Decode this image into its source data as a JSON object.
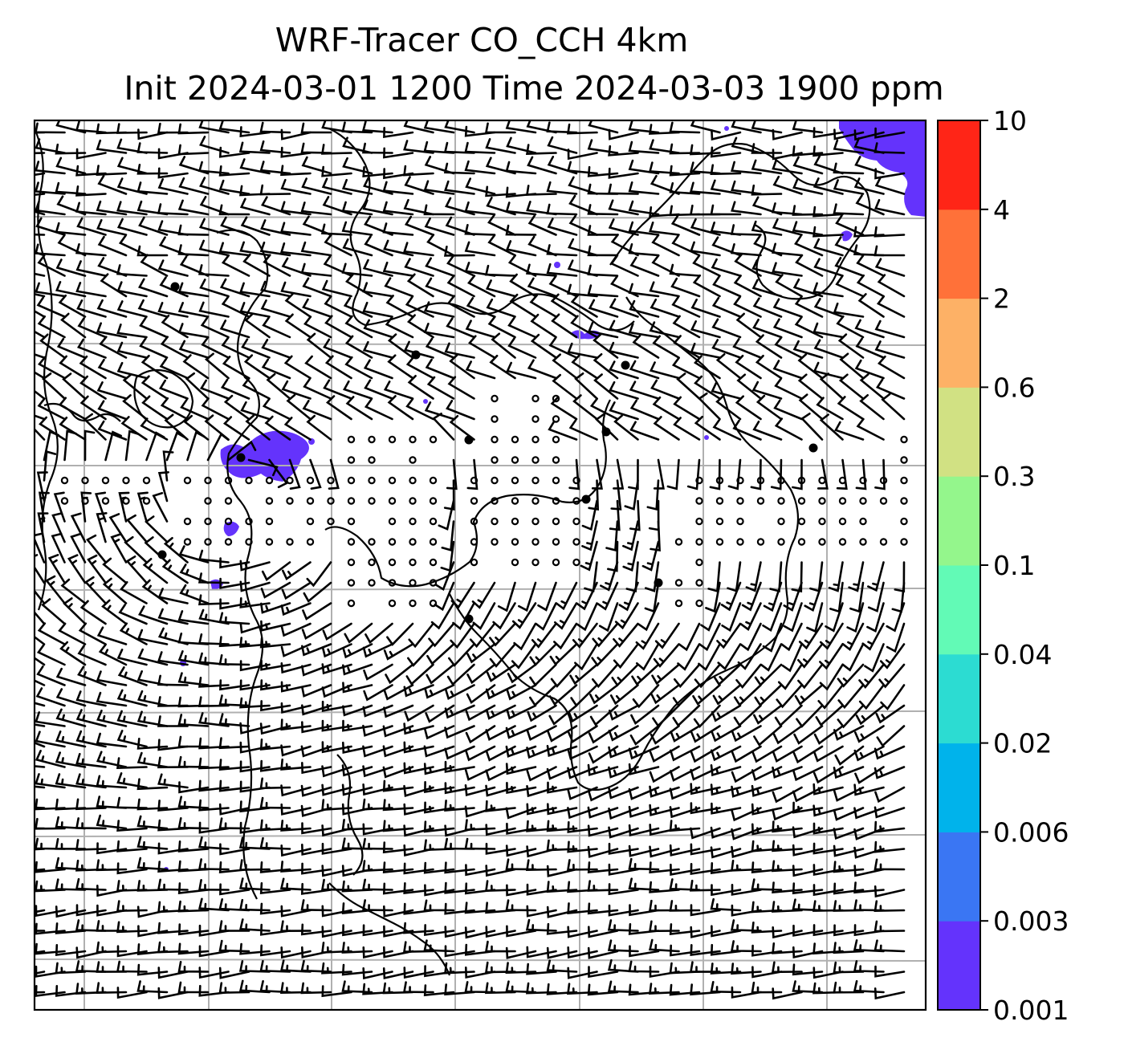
{
  "map": {
    "title_line1": "WRF-Tracer CO_CCH 4km",
    "title_line2": "Init 2024-03-01 1200 Time 2024-03-03 1900 ppm",
    "colorbar": {
      "levels": [
        "0.001",
        "0.003",
        "0.006",
        "0.02",
        "0.04",
        "0.1",
        "0.3",
        "0.6",
        "2",
        "4",
        "10"
      ],
      "colors": [
        "#6433fc",
        "#3a76f3",
        "#00b3eb",
        "#2cdcd2",
        "#62fab6",
        "#94f68c",
        "#d1e183",
        "#fdb166",
        "#ff7139",
        "#ff2517"
      ]
    },
    "grid_color": "#b0b0b0",
    "coastline_color": "#000000",
    "tracer_color": "#6433fc"
  }
}
